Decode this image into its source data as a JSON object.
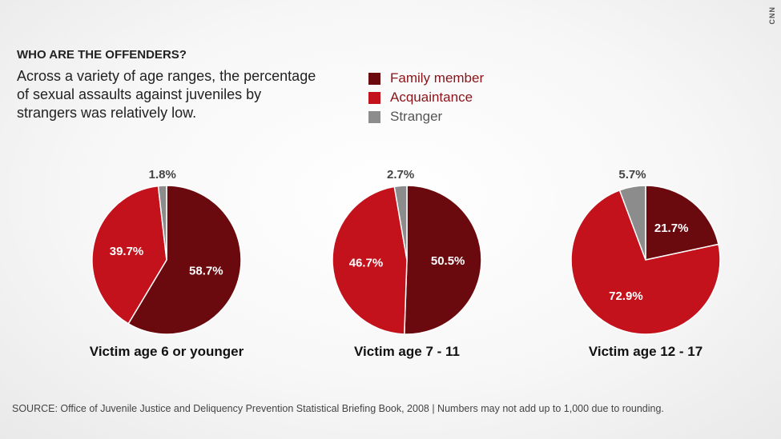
{
  "header": {
    "heading": "WHO ARE THE OFFENDERS?",
    "subtitle": "Across a variety of age ranges, the percentage of sexual assaults against juveniles by strangers was relatively low."
  },
  "brand": {
    "logo_text": "CNN"
  },
  "colors": {
    "family": "#6b0a0e",
    "acquaintance": "#c3121c",
    "stranger": "#8c8c8c",
    "legend_text": "#8a1419"
  },
  "chart_data": [
    {
      "type": "pie",
      "title": "Victim age 6 or younger",
      "slices": [
        {
          "name": "Family member",
          "label": "58.7%",
          "value": 58.7
        },
        {
          "name": "Acquaintance",
          "label": "39.7%",
          "value": 39.7
        },
        {
          "name": "Stranger",
          "label": "1.8%",
          "value": 1.8
        }
      ],
      "legend": [
        "Family member",
        "Acquaintance",
        "Stranger"
      ],
      "legend_placement": "top"
    },
    {
      "type": "pie",
      "title": "Victim age 7 - 11",
      "slices": [
        {
          "name": "Family member",
          "label": "50.5%",
          "value": 50.5
        },
        {
          "name": "Acquaintance",
          "label": "46.7%",
          "value": 46.7
        },
        {
          "name": "Stranger",
          "label": "2.7%",
          "value": 2.7
        }
      ]
    },
    {
      "type": "pie",
      "title": "Victim age 12 - 17",
      "slices": [
        {
          "name": "Family member",
          "label": "21.7%",
          "value": 21.7
        },
        {
          "name": "Acquaintance",
          "label": "72.9%",
          "value": 72.9
        },
        {
          "name": "Stranger",
          "label": "5.7%",
          "value": 5.7
        }
      ]
    }
  ],
  "footer": {
    "source": "SOURCE: Office of Juvenile Justice and Deliquency Prevention Statistical Briefing Book, 2008 | Numbers may not add up to 1,000 due to rounding."
  }
}
